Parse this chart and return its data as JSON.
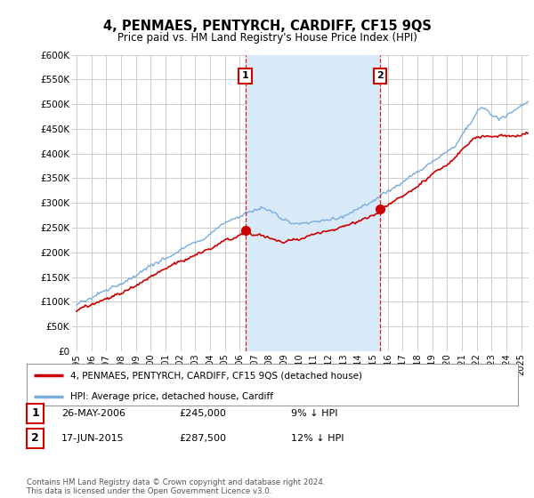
{
  "title": "4, PENMAES, PENTYRCH, CARDIFF, CF15 9QS",
  "subtitle": "Price paid vs. HM Land Registry's House Price Index (HPI)",
  "ylabel_ticks": [
    "£0",
    "£50K",
    "£100K",
    "£150K",
    "£200K",
    "£250K",
    "£300K",
    "£350K",
    "£400K",
    "£450K",
    "£500K",
    "£550K",
    "£600K"
  ],
  "ytick_values": [
    0,
    50000,
    100000,
    150000,
    200000,
    250000,
    300000,
    350000,
    400000,
    450000,
    500000,
    550000,
    600000
  ],
  "ylim": [
    0,
    600000
  ],
  "xlim_start": 1994.7,
  "xlim_end": 2025.5,
  "sale1_x": 2006.39,
  "sale1_y": 245000,
  "sale1_label": "1",
  "sale1_date": "26-MAY-2006",
  "sale1_price": "£245,000",
  "sale1_hpi": "9% ↓ HPI",
  "sale2_x": 2015.46,
  "sale2_y": 287500,
  "sale2_label": "2",
  "sale2_date": "17-JUN-2015",
  "sale2_price": "£287,500",
  "sale2_hpi": "12% ↓ HPI",
  "line_red_color": "#cc0000",
  "line_blue_color": "#7aaddc",
  "shade_color": "#d8eaf7",
  "grid_color": "#cccccc",
  "bg_color": "#ffffff",
  "legend_label_red": "4, PENMAES, PENTYRCH, CARDIFF, CF15 9QS (detached house)",
  "legend_label_blue": "HPI: Average price, detached house, Cardiff",
  "footer_text": "Contains HM Land Registry data © Crown copyright and database right 2024.\nThis data is licensed under the Open Government Licence v3.0.",
  "xtick_years": [
    1995,
    1996,
    1997,
    1998,
    1999,
    2000,
    2001,
    2002,
    2003,
    2004,
    2005,
    2006,
    2007,
    2008,
    2009,
    2010,
    2011,
    2012,
    2013,
    2014,
    2015,
    2016,
    2017,
    2018,
    2019,
    2020,
    2021,
    2022,
    2023,
    2024,
    2025
  ]
}
